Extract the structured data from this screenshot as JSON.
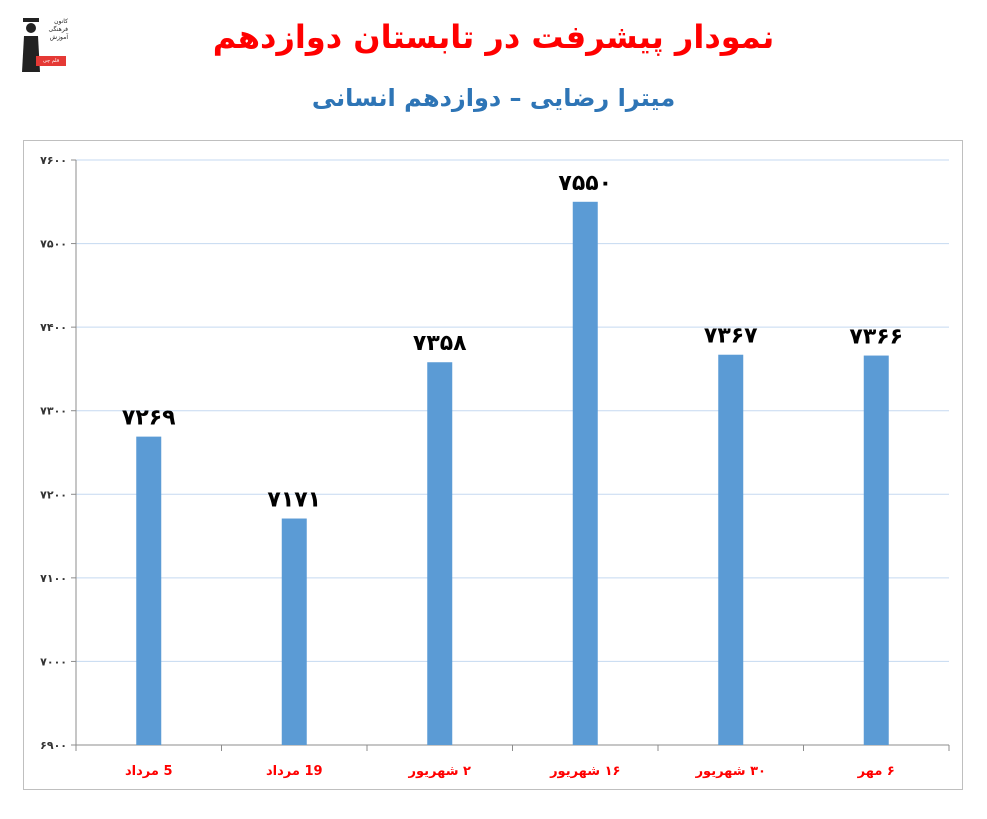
{
  "header": {
    "title": "نمودار پیشرفت در تابستان دوازدهم",
    "subtitle": "میترا رضایی – دوازدهم انسانی",
    "logo_lines": [
      "کانون",
      "فرهنگی",
      "آموزش"
    ],
    "logo_badge": "قلم چی"
  },
  "chart_data": {
    "type": "bar",
    "title": "نمودار پیشرفت در تابستان دوازدهم",
    "subtitle": "میترا رضایی – دوازدهم انسانی",
    "xlabel": "",
    "ylabel": "",
    "categories": [
      "5 مرداد",
      "19 مرداد",
      "۲ شهریور",
      "۱۶ شهریور",
      "۳۰ شهریور",
      "۶ مهر"
    ],
    "values": [
      7269,
      7171,
      7358,
      7550,
      7367,
      7366
    ],
    "value_labels": [
      "۷۲۶۹",
      "۷۱۷۱",
      "۷۳۵۸",
      "۷۵۵۰",
      "۷۳۶۷",
      "۷۳۶۶"
    ],
    "ylim": [
      6900,
      7600
    ],
    "yticks": [
      6900,
      7000,
      7100,
      7200,
      7300,
      7400,
      7500,
      7600
    ],
    "ytick_labels": [
      "۶۹۰۰",
      "۷۰۰۰",
      "۷۱۰۰",
      "۷۲۰۰",
      "۷۳۰۰",
      "۷۴۰۰",
      "۷۵۰۰",
      "۷۶۰۰"
    ],
    "grid": true,
    "bar_color": "#5b9bd5",
    "category_label_color": "#ff0000",
    "grid_color": "#c5d9f1"
  }
}
